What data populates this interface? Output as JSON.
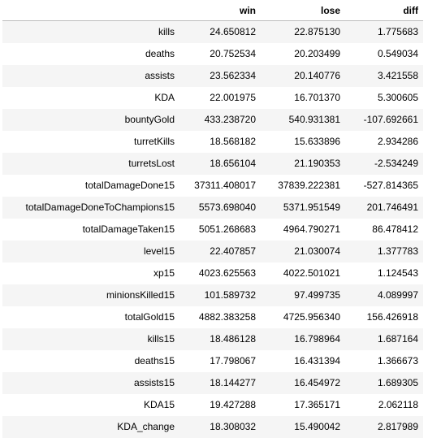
{
  "table": {
    "columns": [
      "",
      "win",
      "lose",
      "diff"
    ],
    "rows": [
      {
        "index": "kills",
        "win": "24.650812",
        "lose": "22.875130",
        "diff": "1.775683"
      },
      {
        "index": "deaths",
        "win": "20.752534",
        "lose": "20.203499",
        "diff": "0.549034"
      },
      {
        "index": "assists",
        "win": "23.562334",
        "lose": "20.140776",
        "diff": "3.421558"
      },
      {
        "index": "KDA",
        "win": "22.001975",
        "lose": "16.701370",
        "diff": "5.300605"
      },
      {
        "index": "bountyGold",
        "win": "433.238720",
        "lose": "540.931381",
        "diff": "-107.692661"
      },
      {
        "index": "turretKills",
        "win": "18.568182",
        "lose": "15.633896",
        "diff": "2.934286"
      },
      {
        "index": "turretsLost",
        "win": "18.656104",
        "lose": "21.190353",
        "diff": "-2.534249"
      },
      {
        "index": "totalDamageDone15",
        "win": "37311.408017",
        "lose": "37839.222381",
        "diff": "-527.814365"
      },
      {
        "index": "totalDamageDoneToChampions15",
        "win": "5573.698040",
        "lose": "5371.951549",
        "diff": "201.746491"
      },
      {
        "index": "totalDamageTaken15",
        "win": "5051.268683",
        "lose": "4964.790271",
        "diff": "86.478412"
      },
      {
        "index": "level15",
        "win": "22.407857",
        "lose": "21.030074",
        "diff": "1.377783"
      },
      {
        "index": "xp15",
        "win": "4023.625563",
        "lose": "4022.501021",
        "diff": "1.124543"
      },
      {
        "index": "minionsKilled15",
        "win": "101.589732",
        "lose": "97.499735",
        "diff": "4.089997"
      },
      {
        "index": "totalGold15",
        "win": "4882.383258",
        "lose": "4725.956340",
        "diff": "156.426918"
      },
      {
        "index": "kills15",
        "win": "18.486128",
        "lose": "16.798964",
        "diff": "1.687164"
      },
      {
        "index": "deaths15",
        "win": "17.798067",
        "lose": "16.431394",
        "diff": "1.366673"
      },
      {
        "index": "assists15",
        "win": "18.144277",
        "lose": "16.454972",
        "diff": "1.689305"
      },
      {
        "index": "KDA15",
        "win": "19.427288",
        "lose": "17.365171",
        "diff": "2.062118"
      },
      {
        "index": "KDA_change",
        "win": "18.308032",
        "lose": "15.490042",
        "diff": "2.817989"
      }
    ]
  },
  "colors": {
    "odd_row": "#f5f5f5",
    "even_row": "#ffffff",
    "header_border": "#bdbdbd"
  }
}
